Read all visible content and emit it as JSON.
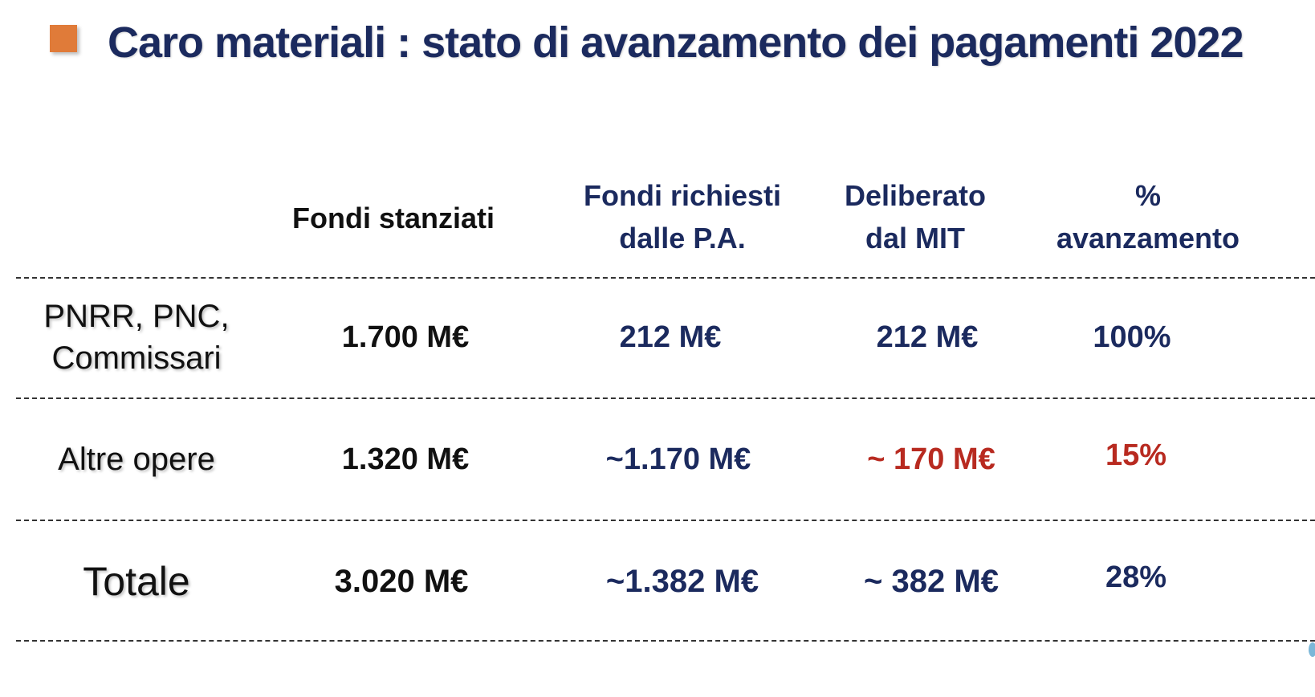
{
  "title": "Caro materiali : stato di avanzamento dei pagamenti 2022",
  "colors": {
    "bullet": "#e07b39",
    "navy": "#1b2a5e",
    "red": "#b82a20",
    "black": "#111111"
  },
  "table": {
    "headers": {
      "fondi_stanziati": "Fondi stanziati",
      "fondi_richiesti_line1": "Fondi richiesti",
      "fondi_richiesti_line2": "dalle P.A.",
      "deliberato_line1": "Deliberato",
      "deliberato_line2": "dal MIT",
      "avanzamento_line1": "%",
      "avanzamento_line2": "avanzamento"
    },
    "rows": [
      {
        "label_line1": "PNRR, PNC,",
        "label_line2": "Commissari",
        "fondi_stanziati": "1.700 M€",
        "fondi_richiesti": "212 M€",
        "deliberato": "212 M€",
        "avanzamento": "100%"
      },
      {
        "label": "Altre opere",
        "fondi_stanziati": "1.320 M€",
        "fondi_richiesti": "~1.170 M€",
        "deliberato": "~ 170 M€",
        "avanzamento": "15%"
      },
      {
        "label": "Totale",
        "fondi_stanziati": "3.020 M€",
        "fondi_richiesti": "~1.382 M€",
        "deliberato": "~ 382 M€",
        "avanzamento": "28%"
      }
    ]
  }
}
